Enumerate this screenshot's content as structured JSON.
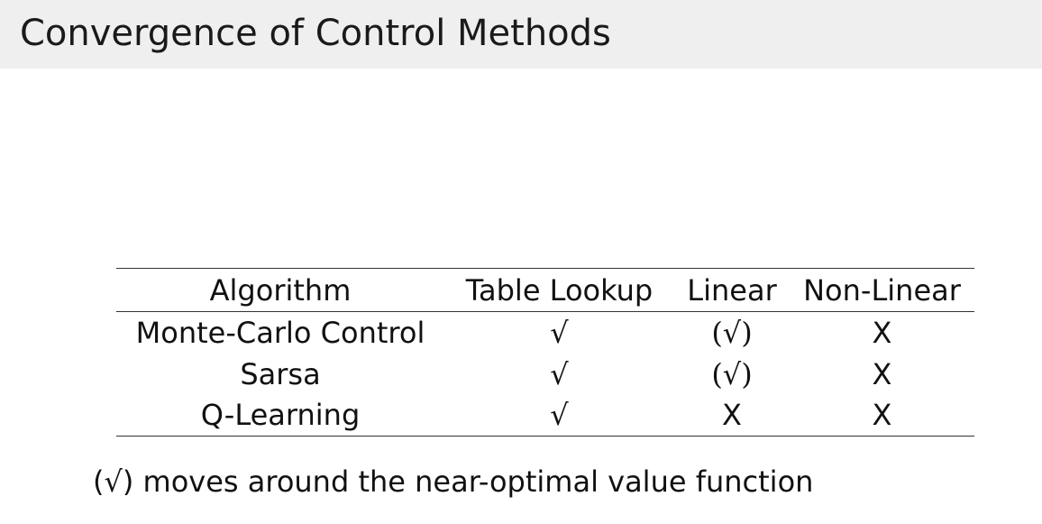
{
  "header": {
    "title": "Convergence of Control Methods"
  },
  "table": {
    "columns": [
      "Algorithm",
      "Table Lookup",
      "Linear",
      "Non-Linear"
    ],
    "rows": [
      [
        "Monte-Carlo Control",
        "√",
        "(√)",
        "X"
      ],
      [
        "Sarsa",
        "√",
        "(√)",
        "X"
      ],
      [
        "Q-Learning",
        "√",
        "X",
        "X"
      ]
    ]
  },
  "footnote": {
    "text": "(√) moves around the near-optimal value function"
  }
}
